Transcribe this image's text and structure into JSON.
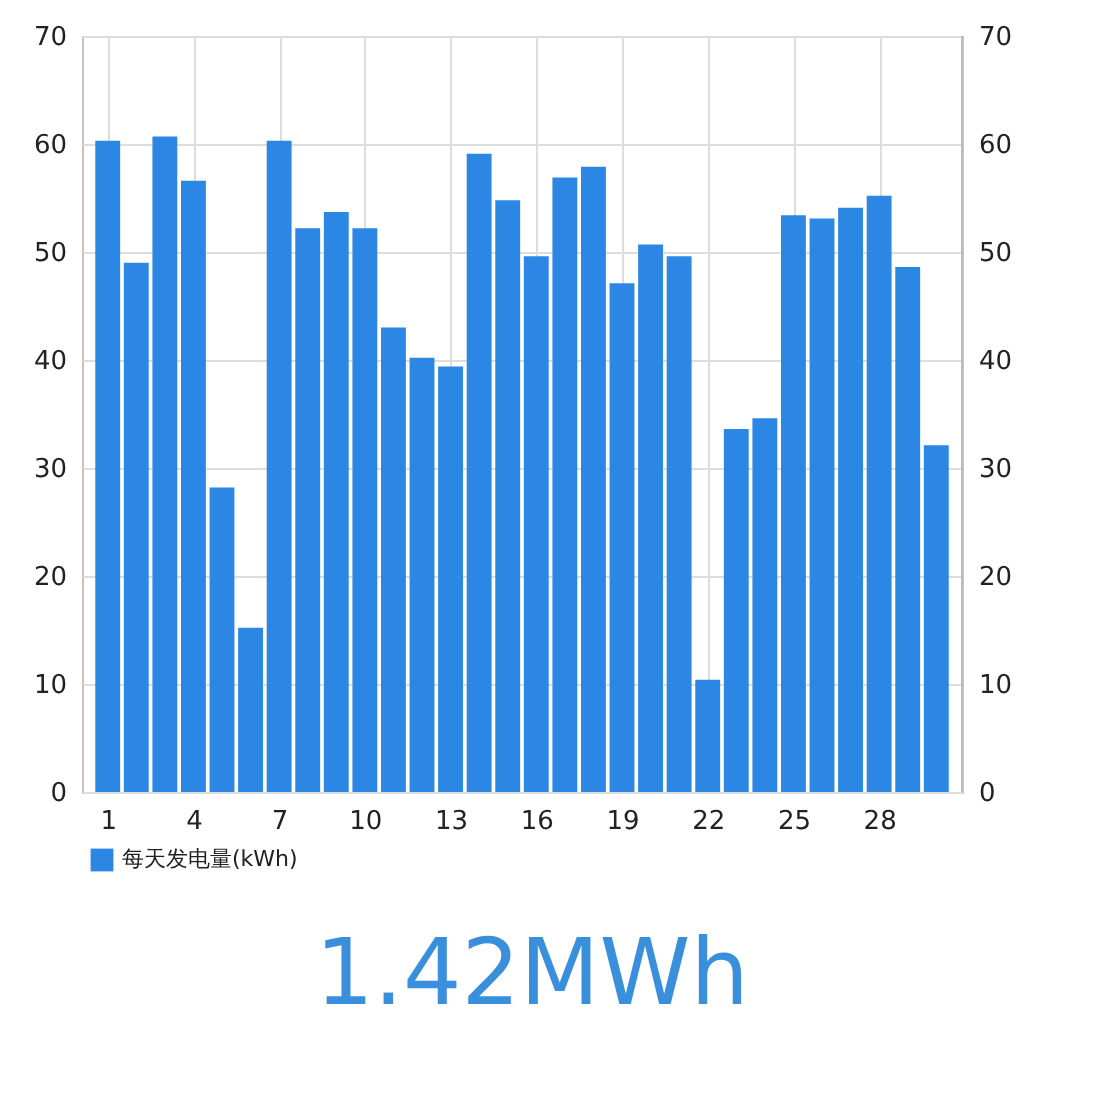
{
  "chart_data": {
    "type": "bar",
    "x": [
      1,
      2,
      3,
      4,
      5,
      6,
      7,
      8,
      9,
      10,
      11,
      12,
      13,
      14,
      15,
      16,
      17,
      18,
      19,
      20,
      21,
      22,
      23,
      24,
      25,
      26,
      27,
      28,
      29,
      30
    ],
    "series": [
      {
        "name": "每天发电量(kWh)",
        "color": "#2b86e4",
        "values": [
          60.3,
          49.0,
          60.7,
          56.6,
          28.2,
          15.2,
          60.3,
          52.2,
          53.7,
          52.2,
          43.0,
          40.2,
          39.4,
          59.1,
          54.8,
          49.6,
          56.9,
          57.9,
          47.1,
          50.7,
          49.6,
          10.4,
          33.6,
          34.6,
          53.4,
          53.1,
          54.1,
          55.2,
          48.6,
          32.1
        ]
      }
    ],
    "xlim": [
      0.1,
      30.9
    ],
    "xticks": [
      1,
      4,
      7,
      10,
      13,
      16,
      19,
      22,
      25,
      28
    ],
    "ylim": [
      0,
      70
    ],
    "yticks": [
      0,
      10,
      20,
      30,
      40,
      50,
      60,
      70
    ],
    "y2lim": [
      0,
      70
    ],
    "y2ticks": [
      0,
      10,
      20,
      30,
      40,
      50,
      60,
      70
    ],
    "grid": true,
    "legend": "bottom left",
    "annotations": [
      "1.42MWh"
    ]
  }
}
